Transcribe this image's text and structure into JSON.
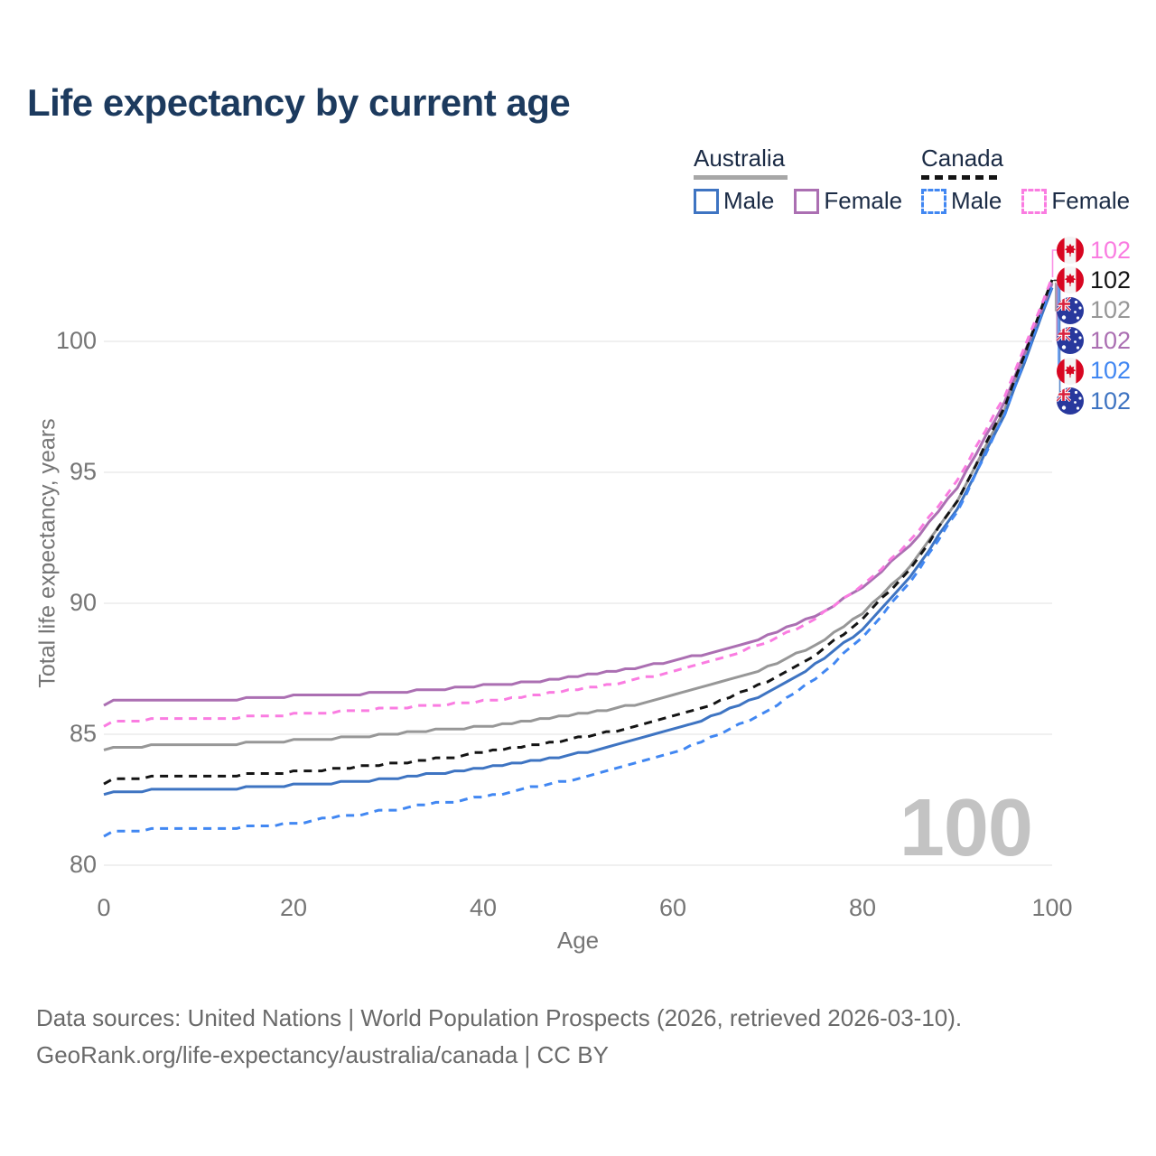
{
  "title": "Life expectancy by current age",
  "watermark": "100",
  "footer": {
    "line1": "Data sources: United Nations | World Population Prospects (2026, retrieved 2026-03-10).",
    "line2": "GeoRank.org/life-expectancy/australia/canada | CC BY"
  },
  "legend": {
    "groups": [
      {
        "label": "Australia",
        "line_style": "solid",
        "underline_color": "#a7a7a7",
        "items": [
          {
            "label": "Male",
            "color": "#3e74c2"
          },
          {
            "label": "Female",
            "color": "#ab6fb2"
          }
        ]
      },
      {
        "label": "Canada",
        "line_style": "dashed",
        "underline_color": "#141414",
        "items": [
          {
            "label": "Male",
            "color": "#4187f2"
          },
          {
            "label": "Female",
            "color": "#fa7ce1"
          }
        ]
      }
    ]
  },
  "chart_data": {
    "type": "line",
    "title": "Life expectancy by current age",
    "xlabel": "Age",
    "ylabel": "Total life expectancy, years",
    "xlim": [
      0,
      100
    ],
    "ylim": [
      79.5,
      103
    ],
    "x_ticks": [
      0,
      20,
      40,
      60,
      80,
      100
    ],
    "y_ticks": [
      80,
      85,
      90,
      95,
      100
    ],
    "grid": "horizontal",
    "grid_color": "#ebebeb",
    "axis_text_color": "#757575",
    "legend_position": "top-right",
    "x": [
      0,
      1,
      5,
      10,
      15,
      20,
      25,
      30,
      35,
      40,
      45,
      50,
      55,
      60,
      65,
      70,
      75,
      80,
      85,
      90,
      95,
      100
    ],
    "series": [
      {
        "id": "australia-all",
        "name": "Australia (all)",
        "country": "australia",
        "color": "#979797",
        "dash": false,
        "values": [
          84.4,
          84.5,
          84.55,
          84.6,
          84.65,
          84.75,
          84.85,
          85.0,
          85.15,
          85.3,
          85.5,
          85.75,
          86.05,
          86.45,
          86.95,
          87.55,
          88.4,
          89.6,
          91.4,
          93.9,
          97.4,
          102.25
        ]
      },
      {
        "id": "australia-male",
        "name": "Australia Male",
        "country": "australia",
        "color": "#3e74c2",
        "dash": false,
        "values": [
          82.65,
          82.8,
          82.85,
          82.9,
          82.95,
          83.05,
          83.15,
          83.3,
          83.5,
          83.7,
          83.95,
          84.25,
          84.65,
          85.15,
          85.8,
          86.6,
          87.65,
          89.0,
          91.0,
          93.6,
          97.2,
          102.05
        ]
      },
      {
        "id": "australia-female",
        "name": "Australia Female",
        "country": "australia",
        "color": "#ab6fb2",
        "dash": false,
        "values": [
          86.1,
          86.25,
          86.3,
          86.3,
          86.35,
          86.45,
          86.5,
          86.6,
          86.7,
          86.85,
          87.0,
          87.2,
          87.45,
          87.8,
          88.2,
          88.75,
          89.5,
          90.6,
          92.2,
          94.4,
          97.7,
          102.2
        ]
      },
      {
        "id": "canada-male",
        "name": "Canada Male",
        "country": "canada",
        "color": "#4187f2",
        "dash": true,
        "values": [
          81.05,
          81.3,
          81.35,
          81.4,
          81.45,
          81.6,
          81.85,
          82.1,
          82.35,
          82.6,
          82.95,
          83.3,
          83.75,
          84.3,
          85.0,
          85.9,
          87.1,
          88.7,
          90.8,
          93.5,
          97.2,
          102.15
        ]
      },
      {
        "id": "canada-all",
        "name": "Canada (all)",
        "country": "canada",
        "color": "#141414",
        "dash": true,
        "values": [
          83.1,
          83.3,
          83.35,
          83.4,
          83.45,
          83.55,
          83.7,
          83.85,
          84.05,
          84.3,
          84.55,
          84.85,
          85.2,
          85.65,
          86.25,
          87.0,
          88.0,
          89.4,
          91.3,
          93.9,
          97.5,
          102.35
        ]
      },
      {
        "id": "canada-female",
        "name": "Canada Female",
        "country": "canada",
        "color": "#fa7ce1",
        "dash": true,
        "values": [
          85.25,
          85.45,
          85.55,
          85.6,
          85.65,
          85.75,
          85.85,
          86.0,
          86.1,
          86.25,
          86.45,
          86.7,
          87.0,
          87.4,
          87.9,
          88.5,
          89.4,
          90.65,
          92.35,
          94.65,
          97.9,
          102.45
        ]
      }
    ],
    "end_labels": [
      {
        "series": "canada-female",
        "text": "102",
        "flag": "canada",
        "color": "#fa7ce1"
      },
      {
        "series": "canada-all",
        "text": "102",
        "flag": "canada",
        "color": "#141414"
      },
      {
        "series": "australia-all",
        "text": "102",
        "flag": "australia",
        "color": "#979797"
      },
      {
        "series": "australia-female",
        "text": "102",
        "flag": "australia",
        "color": "#ab6fb2"
      },
      {
        "series": "canada-male",
        "text": "102",
        "flag": "canada",
        "color": "#4187f2"
      },
      {
        "series": "australia-male",
        "text": "102",
        "flag": "australia",
        "color": "#3e74c2"
      }
    ]
  }
}
